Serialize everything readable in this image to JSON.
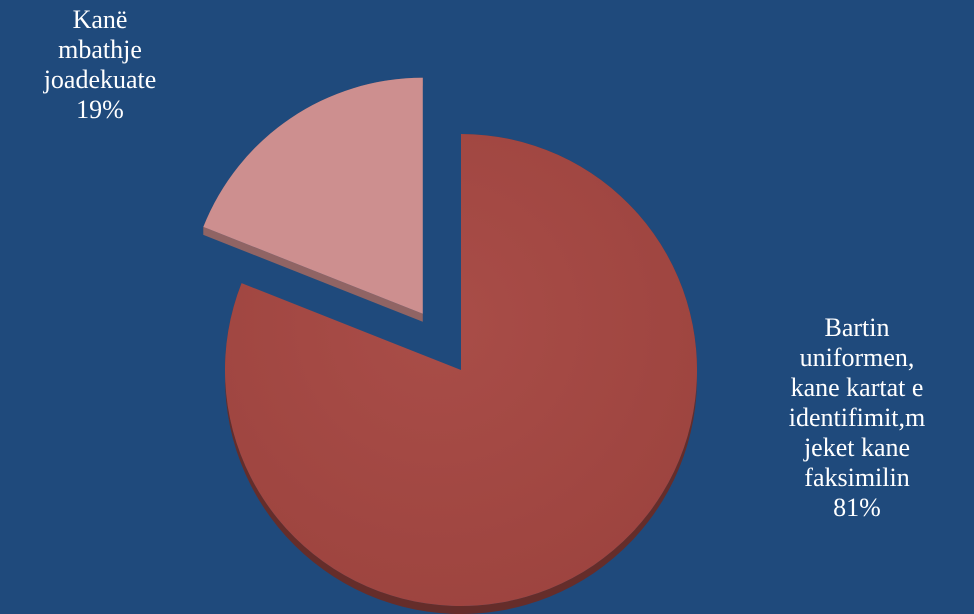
{
  "chart_data": {
    "type": "pie",
    "title": "",
    "slices": [
      {
        "label_lines": [
          "Kanë",
          "mbathje",
          "joadekuate"
        ],
        "value": 19,
        "value_label": "19%",
        "color": "#cd8f8f",
        "exploded": true
      },
      {
        "label_lines": [
          "Bartin",
          "uniformen,",
          "kane kartat e",
          "identifimit,m",
          "jeket kane",
          "faksimilin"
        ],
        "value": 81,
        "value_label": "81%",
        "color": "#a34944",
        "exploded": false
      }
    ],
    "style": "3d",
    "legend": "none"
  }
}
